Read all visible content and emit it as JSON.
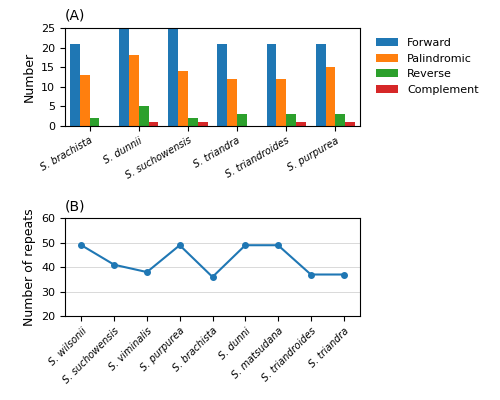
{
  "chart_data": [
    {
      "type": "bar",
      "title": "(A)",
      "y_label": "Number",
      "categories": [
        "S. brachista",
        "S. dunnii",
        "S. suchowensis",
        "S. triandra",
        "S. triandroides",
        "S. purpurea"
      ],
      "series": [
        {
          "name": "Forward",
          "values": [
            21,
            25,
            25,
            21,
            21,
            21
          ]
        },
        {
          "name": "Palindromic",
          "values": [
            13,
            18,
            14,
            12,
            12,
            15
          ]
        },
        {
          "name": "Reverse",
          "values": [
            2,
            5,
            2,
            3,
            3,
            3
          ]
        },
        {
          "name": "Complement",
          "values": [
            0,
            1,
            1,
            0,
            1,
            1
          ]
        }
      ],
      "ylim": [
        0,
        25
      ],
      "yticks": [
        0,
        5,
        10,
        15,
        20,
        25
      ],
      "legend": "upper left",
      "grid": false
    },
    {
      "type": "line",
      "title": "(B)",
      "y_label": "Number of repeats",
      "categories": [
        "S. wilsonii",
        "S. suchowensis",
        "S. viminalis",
        "S. purpurea",
        "S. brachista",
        "S. dunni",
        "S. matsudana",
        "S. triandroides",
        "S. triandra"
      ],
      "values": [
        49,
        41,
        38,
        49,
        36,
        49,
        49,
        37,
        37
      ],
      "marker": "o",
      "ylim": [
        20,
        60
      ],
      "yticks": [
        20,
        30,
        40,
        50,
        60
      ],
      "grid": true
    }
  ]
}
